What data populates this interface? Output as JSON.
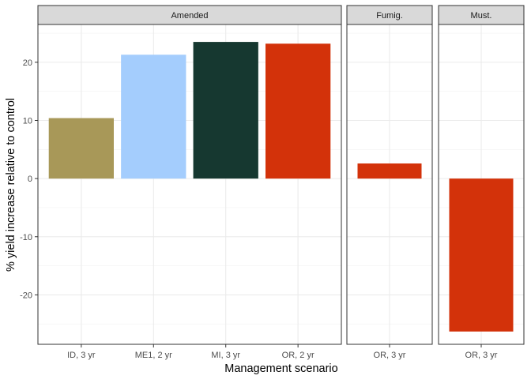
{
  "chart_data": {
    "type": "bar",
    "xlabel": "Management scenario",
    "ylabel": "% yield increase relative to control",
    "ylim": [
      -28.5,
      26.5
    ],
    "yticks": [
      -20,
      -10,
      0,
      10,
      20
    ],
    "ytick_labels": [
      "-20",
      "-10",
      "0",
      "10",
      "20"
    ],
    "grid": true,
    "legend": "none",
    "facets": [
      {
        "name": "Amended",
        "bars": [
          {
            "category": "ID, 3 yr",
            "value": 10.4,
            "color": "#a89858"
          },
          {
            "category": "ME1, 2 yr",
            "value": 21.3,
            "color": "#a4cdfd"
          },
          {
            "category": "MI, 3 yr",
            "value": 23.5,
            "color": "#163830"
          },
          {
            "category": "OR, 2 yr",
            "value": 23.2,
            "color": "#d3320a"
          }
        ]
      },
      {
        "name": "Fumig.",
        "bars": [
          {
            "category": "OR, 3 yr",
            "value": 2.6,
            "color": "#d3320a"
          }
        ]
      },
      {
        "name": "Must.",
        "bars": [
          {
            "category": "OR, 3 yr",
            "value": -26.3,
            "color": "#d3320a"
          }
        ]
      }
    ]
  }
}
